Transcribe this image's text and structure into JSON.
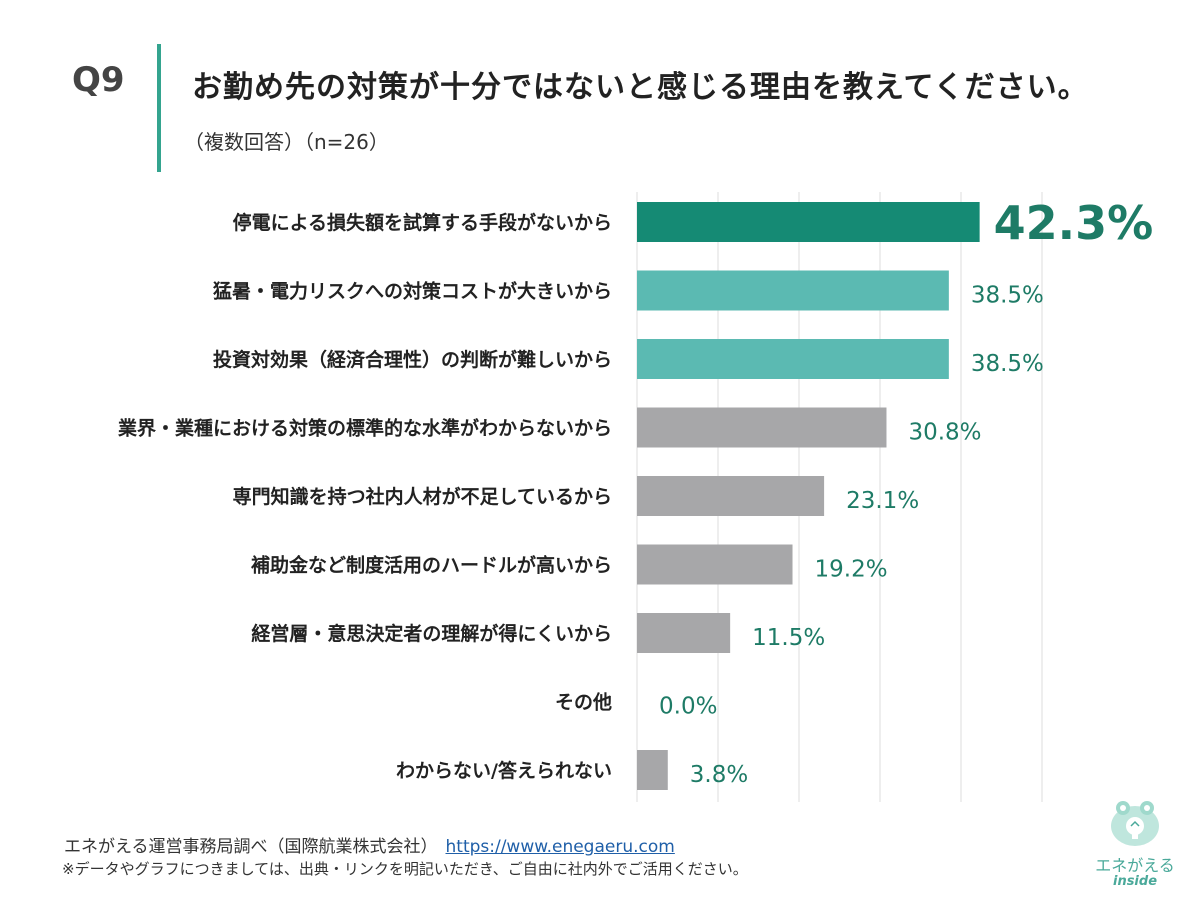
{
  "header": {
    "question_number": "Q9",
    "title": "お勤め先の対策が十分ではないと感じる理由を教えてください。",
    "subtitle": "（複数回答）（n=26）"
  },
  "colors": {
    "accent_bar": "#34a48f",
    "highlight": "#158a74",
    "secondary": "#5bbab2",
    "neutral": "#a7a7a9",
    "label_value": "#1e7b66"
  },
  "chart_data": {
    "type": "bar",
    "orientation": "horizontal",
    "categories": [
      "停電による損失額を試算する手段がないから",
      "猛暑・電力リスクへの対策コストが大きいから",
      "投資対効果（経済合理性）の判断が難しいから",
      "業界・業種における対策の標準的な水準がわからないから",
      "専門知識を持つ社内人材が不足しているから",
      "補助金など制度活用のハードルが高いから",
      "経営層・意思決定者の理解が得にくいから",
      "その他",
      "わからない/答えられない"
    ],
    "values": [
      42.3,
      38.5,
      38.5,
      30.8,
      23.1,
      19.2,
      11.5,
      0.0,
      3.8
    ],
    "value_labels": [
      "42.3%",
      "38.5%",
      "38.5%",
      "30.8%",
      "23.1%",
      "19.2%",
      "11.5%",
      "0.0%",
      "3.8%"
    ],
    "bar_colors": [
      "highlight",
      "secondary",
      "secondary",
      "neutral",
      "neutral",
      "neutral",
      "neutral",
      "neutral",
      "neutral"
    ],
    "xlim": [
      0,
      50
    ],
    "grid": true
  },
  "footer": {
    "source": "エネがえる運営事務局調べ（国際航業株式会社）",
    "url": "https://www.enegaeru.com",
    "note": "※データやグラフにつきましては、出典・リンクを明記いただき、ご自由に社内外でご活用ください。"
  },
  "logo": {
    "name": "エネがえる",
    "sub": "inside",
    "icon": "frog-lightbulb-icon"
  }
}
